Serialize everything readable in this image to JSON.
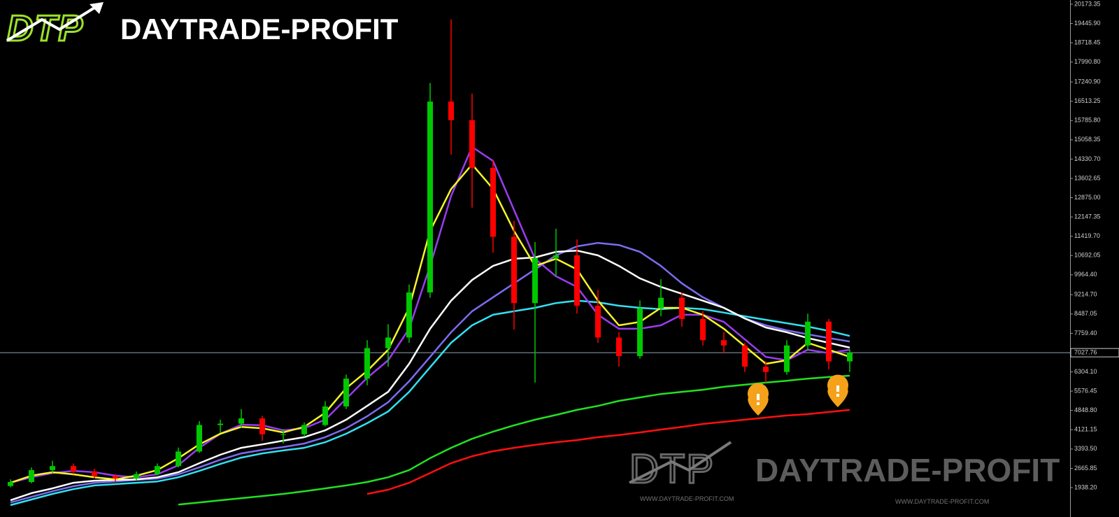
{
  "logo": {
    "mark": "DTP",
    "name": "DAYTRADE-PROFIT"
  },
  "watermark": {
    "mark": "DTP",
    "name": "DAYTRADE-PROFIT",
    "url_left": "WWW.DAYTRADE-PROFIT.COM",
    "url_right": "WWW.DAYTRADE-PROFIT.COM"
  },
  "chart_data": {
    "type": "candlestick",
    "up_color": "#00c800",
    "down_color": "#ff0000",
    "open": [
      2000,
      2150,
      2600,
      2750,
      2550,
      2380,
      2280,
      2450,
      2750,
      3300,
      4300,
      4350,
      4550,
      3950,
      3950,
      4300,
      5000,
      6050,
      7200,
      7600,
      9300,
      16500,
      15800,
      14000,
      11400,
      8900,
      10600,
      10700,
      8800,
      7600,
      6900,
      8700,
      9100,
      8300,
      7500,
      7300,
      6500,
      6300,
      7300,
      8200,
      6700
    ],
    "high": [
      2250,
      2700,
      2950,
      2850,
      2650,
      2450,
      2550,
      2850,
      3450,
      4450,
      4500,
      4900,
      4650,
      4150,
      4400,
      5200,
      6200,
      7500,
      8100,
      9600,
      17200,
      19600,
      16800,
      14300,
      12000,
      11200,
      11700,
      11300,
      9400,
      7800,
      9000,
      9800,
      9300,
      8600,
      7800,
      7400,
      6700,
      7500,
      8500,
      8300,
      7150
    ],
    "low": [
      1950,
      2100,
      2500,
      2450,
      2300,
      2150,
      2200,
      2400,
      2700,
      3250,
      4000,
      4200,
      3700,
      3600,
      3850,
      4250,
      4900,
      5800,
      6500,
      7400,
      9100,
      14500,
      12500,
      10800,
      7900,
      5900,
      9900,
      8500,
      7400,
      6500,
      6800,
      8400,
      8000,
      7300,
      7000,
      6300,
      5900,
      6200,
      7100,
      6400,
      6300
    ],
    "close": [
      2150,
      2600,
      2750,
      2550,
      2380,
      2280,
      2450,
      2750,
      3300,
      4300,
      4350,
      4550,
      3950,
      3950,
      4300,
      5000,
      6050,
      7200,
      7600,
      9300,
      16500,
      15800,
      14000,
      11400,
      8900,
      10600,
      10700,
      8800,
      7600,
      6900,
      8700,
      9100,
      8300,
      7500,
      7300,
      6500,
      6300,
      7300,
      8200,
      6700,
      7028
    ],
    "series": [
      {
        "color": "#ff1010",
        "values": [
          null,
          null,
          null,
          null,
          null,
          null,
          null,
          null,
          null,
          null,
          null,
          null,
          null,
          null,
          null,
          null,
          null,
          1700,
          1860,
          2120,
          2490,
          2860,
          3120,
          3310,
          3440,
          3550,
          3650,
          3730,
          3840,
          3920,
          4020,
          4130,
          4230,
          4340,
          4420,
          4500,
          4580,
          4660,
          4710,
          4790,
          4870
        ]
      },
      {
        "color": "#22e022",
        "values": [
          null,
          null,
          null,
          null,
          null,
          null,
          null,
          null,
          1300,
          1380,
          1460,
          1540,
          1620,
          1700,
          1800,
          1910,
          2020,
          2150,
          2330,
          2600,
          3050,
          3440,
          3780,
          4050,
          4290,
          4500,
          4680,
          4870,
          5020,
          5210,
          5340,
          5470,
          5550,
          5630,
          5740,
          5820,
          5900,
          5970,
          6050,
          6110,
          6160
        ]
      },
      {
        "color": "#33e0f0",
        "values": [
          1280,
          1490,
          1700,
          1880,
          2020,
          2070,
          2120,
          2170,
          2330,
          2570,
          2830,
          3070,
          3230,
          3340,
          3440,
          3650,
          3970,
          4370,
          4810,
          5550,
          6480,
          7400,
          8060,
          8460,
          8590,
          8720,
          8900,
          8990,
          8930,
          8800,
          8720,
          8670,
          8720,
          8670,
          8540,
          8400,
          8270,
          8140,
          8010,
          7850,
          7660
        ]
      },
      {
        "color": "#7b6cf0",
        "values": [
          1380,
          1590,
          1800,
          1990,
          2120,
          2170,
          2230,
          2280,
          2440,
          2700,
          2990,
          3230,
          3360,
          3470,
          3600,
          3840,
          4180,
          4630,
          5160,
          5950,
          6870,
          7800,
          8590,
          9120,
          9640,
          10170,
          10700,
          11040,
          11170,
          11090,
          10830,
          10300,
          9640,
          9120,
          8720,
          8320,
          8060,
          7870,
          7720,
          7580,
          7450
        ]
      },
      {
        "color": "#ffffff",
        "values": [
          1460,
          1730,
          1910,
          2120,
          2200,
          2230,
          2250,
          2330,
          2520,
          2860,
          3180,
          3440,
          3570,
          3710,
          3840,
          4100,
          4500,
          5020,
          5550,
          6610,
          7930,
          8990,
          9770,
          10300,
          10570,
          10620,
          10830,
          10880,
          10700,
          10300,
          9830,
          9510,
          9250,
          8990,
          8720,
          8320,
          7980,
          7800,
          7580,
          7400,
          7220
        ]
      },
      {
        "color": "#9a3cf0",
        "values": [
          2120,
          2330,
          2490,
          2570,
          2520,
          2390,
          2330,
          2440,
          2780,
          3440,
          3970,
          4310,
          4290,
          4100,
          4180,
          4500,
          5290,
          6080,
          6740,
          7930,
          10300,
          12940,
          14790,
          14260,
          12410,
          10570,
          9910,
          9510,
          8460,
          7930,
          7930,
          8060,
          8460,
          8460,
          8190,
          7530,
          6870,
          6740,
          7140,
          7010,
          7140
        ]
      },
      {
        "color": "#f5f528",
        "values": [
          2120,
          2390,
          2520,
          2440,
          2330,
          2250,
          2390,
          2600,
          3050,
          3570,
          3970,
          4230,
          4180,
          4020,
          4230,
          4760,
          5690,
          6340,
          7140,
          8720,
          11620,
          13200,
          14130,
          13210,
          11620,
          10300,
          10570,
          10170,
          8990,
          8060,
          8190,
          8720,
          8720,
          8460,
          7930,
          7270,
          6610,
          6740,
          7400,
          7140,
          6870
        ]
      }
    ],
    "last_price": 7027.76,
    "ylim": [
      1226,
      20331
    ],
    "yticks": [
      20173.35,
      {
        "value": 19445.9,
        "label": "19445.90"
      },
      18718.45,
      {
        "value": 17990.8,
        "label": "17990.80"
      },
      {
        "value": 17240.9,
        "label": "17240.90"
      },
      16513.25,
      {
        "value": 15785.8,
        "label": "15785.80"
      },
      15058.35,
      {
        "value": 14330.7,
        "label": "14330.70"
      },
      13602.65,
      {
        "value": 12875,
        "label": "12875.00"
      },
      12147.35,
      {
        "value": 11419.7,
        "label": "11419.70"
      },
      10692.05,
      {
        "value": 9964.4,
        "label": "9964.40"
      },
      {
        "value": 9214.7,
        "label": "9214.70"
      },
      8487.05,
      {
        "value": 7759.4,
        "label": "7759.40"
      },
      {
        "value": 6304.1,
        "label": "6304.10"
      },
      5576.45,
      {
        "value": 4848.8,
        "label": "4848.80"
      },
      4121.15,
      {
        "value": 3393.5,
        "label": "3393.50"
      },
      2665.85,
      {
        "value": 1938.2,
        "label": "1938.20"
      }
    ]
  }
}
